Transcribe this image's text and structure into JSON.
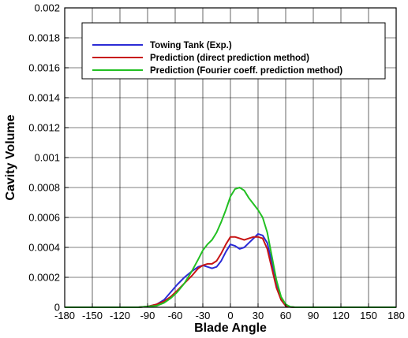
{
  "chart_data": {
    "type": "line",
    "xlabel": "Blade Angle",
    "ylabel": "Cavity Volume",
    "xlim": [
      -180,
      180
    ],
    "ylim": [
      0,
      0.002
    ],
    "grid": true,
    "legend_position": "top",
    "x_ticks": [
      -180,
      -150,
      -120,
      -90,
      -60,
      -30,
      0,
      30,
      60,
      90,
      120,
      150,
      180
    ],
    "x_tick_labels": [
      "-180",
      "-150",
      "-120",
      "-90",
      "-60",
      "-30",
      "0",
      "30",
      "60",
      "90",
      "120",
      "150",
      "180"
    ],
    "y_ticks": [
      0,
      0.0002,
      0.0004,
      0.0006,
      0.0008,
      0.001,
      0.0012,
      0.0014,
      0.0016,
      0.0018,
      0.002
    ],
    "y_tick_labels": [
      "0",
      "0.0002",
      "0.0004",
      "0.0006",
      "0.0008",
      "0.001",
      "0.0012",
      "0.0014",
      "0.0016",
      "0.0018",
      "0.002"
    ],
    "series": [
      {
        "name": "Towing Tank (Exp.)",
        "color": "#2b2bd6",
        "x": [
          -180,
          -100,
          -90,
          -80,
          -72,
          -65,
          -58,
          -50,
          -42,
          -35,
          -30,
          -25,
          -20,
          -15,
          -10,
          -5,
          0,
          5,
          10,
          15,
          20,
          25,
          30,
          35,
          40,
          45,
          50,
          55,
          60,
          65,
          70,
          180
        ],
        "y": [
          0.0,
          0.0,
          5e-06,
          2e-05,
          5e-05,
          0.0001,
          0.00015,
          0.0002,
          0.00024,
          0.00027,
          0.00028,
          0.00027,
          0.00026,
          0.00027,
          0.00031,
          0.00037,
          0.00042,
          0.00041,
          0.00039,
          0.0004,
          0.00043,
          0.00046,
          0.00049,
          0.00048,
          0.00043,
          0.0003,
          0.00015,
          5e-05,
          1e-05,
          2e-06,
          0.0,
          0.0
        ]
      },
      {
        "name": "Prediction (direct prediction method)",
        "color": "#c81414",
        "x": [
          -180,
          -100,
          -90,
          -80,
          -72,
          -65,
          -58,
          -50,
          -42,
          -35,
          -30,
          -25,
          -20,
          -15,
          -10,
          -5,
          0,
          5,
          10,
          15,
          20,
          25,
          30,
          35,
          40,
          45,
          50,
          55,
          60,
          65,
          70,
          180
        ],
        "y": [
          0.0,
          0.0,
          5e-06,
          2e-05,
          4e-05,
          7e-05,
          0.00011,
          0.00016,
          0.00021,
          0.00026,
          0.00028,
          0.00029,
          0.00029,
          0.00031,
          0.00036,
          0.00042,
          0.00047,
          0.00047,
          0.00046,
          0.00045,
          0.00046,
          0.00047,
          0.00047,
          0.00046,
          0.00039,
          0.00026,
          0.00013,
          5e-05,
          1e-05,
          2e-06,
          0.0,
          0.0
        ]
      },
      {
        "name": "Prediction (Fourier coeff. prediction method)",
        "color": "#22c022",
        "x": [
          -180,
          -100,
          -90,
          -80,
          -72,
          -65,
          -58,
          -50,
          -42,
          -35,
          -30,
          -25,
          -20,
          -15,
          -10,
          -5,
          0,
          5,
          10,
          15,
          20,
          25,
          30,
          35,
          40,
          45,
          50,
          55,
          60,
          65,
          70,
          180
        ],
        "y": [
          0.0,
          0.0,
          5e-06,
          1e-05,
          3e-05,
          6e-05,
          0.0001,
          0.00016,
          0.00024,
          0.00032,
          0.00038,
          0.00042,
          0.00045,
          0.0005,
          0.00057,
          0.00065,
          0.00074,
          0.00079,
          0.0008,
          0.00078,
          0.00073,
          0.00069,
          0.00065,
          0.0006,
          0.0005,
          0.00034,
          0.00018,
          7e-05,
          2e-05,
          3e-06,
          0.0,
          0.0
        ]
      }
    ]
  }
}
